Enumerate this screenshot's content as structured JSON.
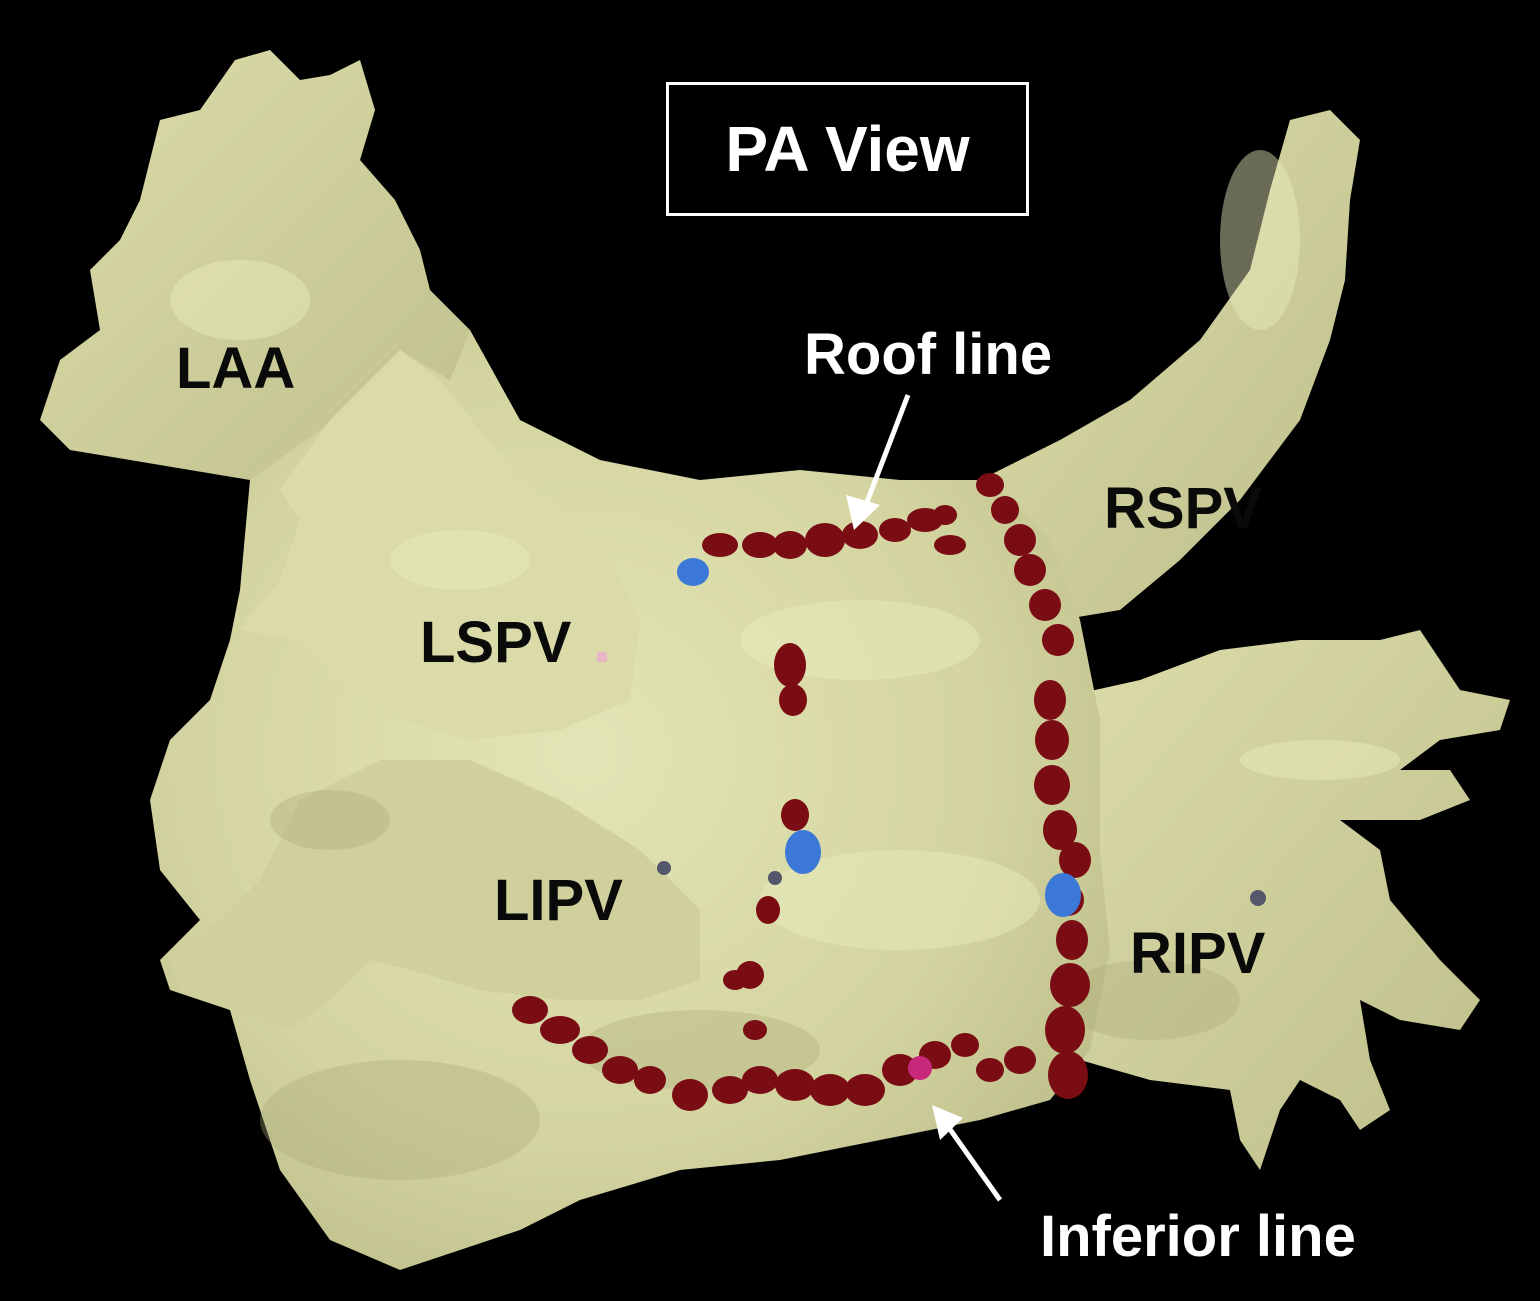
{
  "view_title": "PA View",
  "structure_labels": {
    "laa": "LAA",
    "lspv": "LSPV",
    "lipv": "LIPV",
    "rspv": "RSPV",
    "ripv": "RIPV"
  },
  "line_labels": {
    "roof": "Roof line",
    "inferior": "Inferior line"
  },
  "colors": {
    "background": "#000000",
    "atrium_surface": "#d7d8a6",
    "ablation_lesion": "#7a0c14",
    "marker_blue": "#3b78d8",
    "marker_magenta": "#c8287a",
    "label_dark": "#0a0a0a",
    "label_light": "#ffffff"
  }
}
